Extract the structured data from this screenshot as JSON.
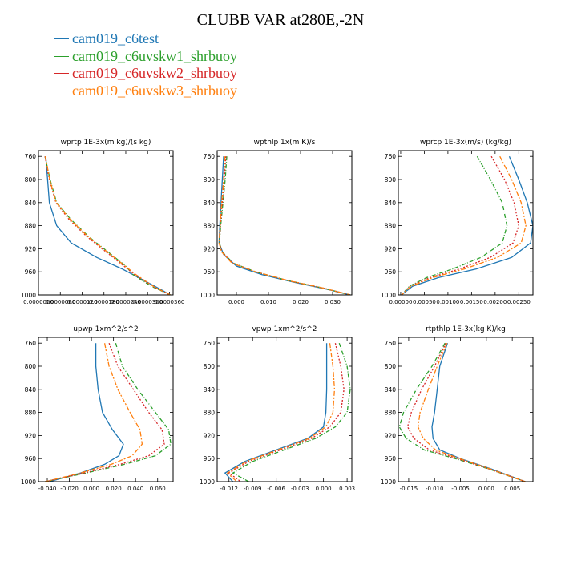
{
  "title": "CLUBB VAR at280E,-2N",
  "legend": [
    {
      "name": "cam019_c6test",
      "color": "#1f77b4"
    },
    {
      "name": "cam019_c6uvskw1_shrbuoy",
      "color": "#2ca02c"
    },
    {
      "name": "cam019_c6uvskw2_shrbuoy",
      "color": "#d62728"
    },
    {
      "name": "cam019_c6uvskw3_shrbuoy",
      "color": "#ff7f0e"
    }
  ],
  "chart_data": [
    {
      "type": "line",
      "title": "wprtp  1E-3x(m kg)/(s kg)",
      "xlim": [
        0.0,
        3.7e-05
      ],
      "ylim": [
        1000,
        750
      ],
      "xticks": [
        0.0,
        6e-06,
        1.2e-05,
        1.8e-05,
        2.4e-05,
        3e-05,
        3.6e-05
      ],
      "xtick_labels": [
        "0.0000000",
        "0.0000060",
        "0.0000120",
        "0.0000180",
        "0.0000240",
        "0.0000300",
        "0.0000360"
      ],
      "yticks": [
        760,
        800,
        840,
        880,
        920,
        960,
        1000
      ],
      "series": [
        {
          "name": "cam019_c6test",
          "x": [
            2e-06,
            2.5e-06,
            3e-06,
            5e-06,
            9e-06,
            1.6e-05,
            2.3e-05,
            2.9e-05,
            3.4e-05,
            3.62e-05
          ],
          "y": [
            760,
            800,
            840,
            880,
            910,
            935,
            955,
            975,
            992,
            1000
          ]
        },
        {
          "name": "cam019_c6uvskw1_shrbuoy",
          "x": [
            1.8e-06,
            3.2e-06,
            5e-06,
            9e-06,
            1.4e-05,
            2e-05,
            2.4e-05,
            2.6e-05,
            3.1e-05,
            3.62e-05
          ],
          "y": [
            760,
            800,
            840,
            870,
            900,
            930,
            950,
            965,
            985,
            1000
          ]
        },
        {
          "name": "cam019_c6uvskw2_shrbuoy",
          "x": [
            1.8e-06,
            3e-06,
            4.8e-06,
            8.5e-06,
            1.35e-05,
            1.95e-05,
            2.35e-05,
            2.65e-05,
            3.2e-05,
            3.62e-05
          ],
          "y": [
            760,
            800,
            840,
            870,
            900,
            930,
            950,
            965,
            987,
            1000
          ]
        },
        {
          "name": "cam019_c6uvskw3_shrbuoy",
          "x": [
            1.9e-06,
            3.1e-06,
            4.9e-06,
            8.8e-06,
            1.38e-05,
            1.98e-05,
            2.38e-05,
            2.68e-05,
            3.18e-05,
            3.62e-05
          ],
          "y": [
            760,
            800,
            840,
            870,
            900,
            930,
            950,
            965,
            986,
            1000
          ]
        }
      ]
    },
    {
      "type": "line",
      "title": "wpthlp  1x(m K)/s",
      "xlim": [
        -0.006,
        0.036
      ],
      "ylim": [
        1000,
        750
      ],
      "xticks": [
        0.0,
        0.01,
        0.02,
        0.03
      ],
      "xtick_labels": [
        "0.000",
        "0.010",
        "0.020",
        "0.030"
      ],
      "yticks": [
        760,
        800,
        840,
        880,
        920,
        960,
        1000
      ],
      "series": [
        {
          "name": "cam019_c6test",
          "x": [
            -0.004,
            -0.0044,
            -0.0048,
            -0.0052,
            -0.0054,
            -0.004,
            0.0,
            0.008,
            0.018,
            0.028,
            0.0355
          ],
          "y": [
            760,
            800,
            840,
            880,
            910,
            930,
            950,
            965,
            978,
            990,
            1000
          ]
        },
        {
          "name": "cam019_c6uvskw1_shrbuoy",
          "x": [
            -0.003,
            -0.0035,
            -0.0042,
            -0.0049,
            -0.0053,
            -0.0045,
            -0.001,
            0.006,
            0.016,
            0.027,
            0.0355
          ],
          "y": [
            760,
            800,
            840,
            880,
            910,
            925,
            945,
            960,
            975,
            988,
            1000
          ]
        },
        {
          "name": "cam019_c6uvskw2_shrbuoy",
          "x": [
            -0.0033,
            -0.0038,
            -0.0044,
            -0.005,
            -0.0053,
            -0.0046,
            -0.0012,
            0.006,
            0.016,
            0.027,
            0.0355
          ],
          "y": [
            760,
            800,
            840,
            880,
            910,
            925,
            945,
            960,
            975,
            988,
            1000
          ]
        },
        {
          "name": "cam019_c6uvskw3_shrbuoy",
          "x": [
            -0.0036,
            -0.004,
            -0.0046,
            -0.0051,
            -0.0054,
            -0.0047,
            -0.0014,
            0.006,
            0.016,
            0.027,
            0.0355
          ],
          "y": [
            760,
            800,
            840,
            880,
            910,
            925,
            945,
            960,
            975,
            988,
            1000
          ]
        }
      ]
    },
    {
      "type": "line",
      "title": "wprcp  1E-3x(m/s) (kg/kg)",
      "xlim": [
        -5e-05,
        0.0028
      ],
      "ylim": [
        1000,
        750
      ],
      "xticks": [
        0.0,
        0.0005,
        0.001,
        0.0015,
        0.002,
        0.0025
      ],
      "xtick_labels": [
        "0.00000",
        "0.00050",
        "0.00100",
        "0.00150",
        "0.00200",
        "0.00250"
      ],
      "yticks": [
        760,
        800,
        840,
        880,
        920,
        960,
        1000
      ],
      "series": [
        {
          "name": "cam019_c6test",
          "x": [
            0.0023,
            0.0025,
            0.00268,
            0.0028,
            0.00275,
            0.00235,
            0.0016,
            0.0008,
            0.00025,
            2e-05
          ],
          "y": [
            760,
            800,
            840,
            880,
            910,
            935,
            955,
            970,
            985,
            1000
          ]
        },
        {
          "name": "cam019_c6uvskw1_shrbuoy",
          "x": [
            0.00162,
            0.0019,
            0.00215,
            0.00225,
            0.00215,
            0.0017,
            0.0011,
            0.00055,
            0.00018,
            2e-05
          ],
          "y": [
            760,
            800,
            840,
            880,
            910,
            935,
            955,
            970,
            985,
            1000
          ]
        },
        {
          "name": "cam019_c6uvskw2_shrbuoy",
          "x": [
            0.00192,
            0.0022,
            0.0024,
            0.0025,
            0.00238,
            0.0019,
            0.00125,
            0.00062,
            0.0002,
            2e-05
          ],
          "y": [
            760,
            800,
            840,
            880,
            910,
            935,
            955,
            970,
            985,
            1000
          ]
        },
        {
          "name": "cam019_c6uvskw3_shrbuoy",
          "x": [
            0.0021,
            0.00235,
            0.00255,
            0.00265,
            0.00255,
            0.00205,
            0.00135,
            0.00068,
            0.00022,
            2e-05
          ],
          "y": [
            760,
            800,
            840,
            880,
            910,
            935,
            955,
            970,
            985,
            1000
          ]
        }
      ]
    },
    {
      "type": "line",
      "title": "upwp  1xm^2/s^2",
      "xlim": [
        -0.048,
        0.074
      ],
      "ylim": [
        1000,
        750
      ],
      "xticks": [
        -0.04,
        -0.02,
        0.0,
        0.02,
        0.04,
        0.06
      ],
      "xtick_labels": [
        "-0.040",
        "-0.020",
        "0.000",
        "0.020",
        "0.040",
        "0.060"
      ],
      "yticks": [
        760,
        800,
        840,
        880,
        920,
        960,
        1000
      ],
      "series": [
        {
          "name": "cam019_c6test",
          "x": [
            0.004,
            0.004,
            0.006,
            0.01,
            0.019,
            0.029,
            0.025,
            0.012,
            -0.01,
            -0.038
          ],
          "y": [
            760,
            800,
            840,
            880,
            910,
            935,
            955,
            970,
            985,
            1000
          ]
        },
        {
          "name": "cam019_c6uvskw1_shrbuoy",
          "x": [
            0.022,
            0.028,
            0.042,
            0.058,
            0.07,
            0.072,
            0.058,
            0.03,
            -0.005,
            -0.042
          ],
          "y": [
            760,
            800,
            840,
            880,
            910,
            935,
            955,
            970,
            985,
            1000
          ]
        },
        {
          "name": "cam019_c6uvskw2_shrbuoy",
          "x": [
            0.016,
            0.024,
            0.038,
            0.052,
            0.064,
            0.066,
            0.052,
            0.026,
            -0.007,
            -0.042
          ],
          "y": [
            760,
            800,
            840,
            880,
            910,
            935,
            955,
            970,
            985,
            1000
          ]
        },
        {
          "name": "cam019_c6uvskw3_shrbuoy",
          "x": [
            0.012,
            0.016,
            0.024,
            0.035,
            0.044,
            0.046,
            0.037,
            0.018,
            -0.01,
            -0.042
          ],
          "y": [
            760,
            800,
            840,
            880,
            910,
            935,
            955,
            970,
            985,
            1000
          ]
        }
      ]
    },
    {
      "type": "line",
      "title": "vpwp  1xm^2/s^2",
      "xlim": [
        -0.0135,
        0.0036
      ],
      "ylim": [
        1000,
        750
      ],
      "xticks": [
        -0.012,
        -0.009,
        -0.006,
        -0.003,
        0.0,
        0.003
      ],
      "xtick_labels": [
        "-0.012",
        "-0.009",
        "-0.006",
        "-0.003",
        "0.000",
        "0.003"
      ],
      "yticks": [
        760,
        800,
        840,
        880,
        920,
        960,
        1000
      ],
      "series": [
        {
          "name": "cam019_c6test",
          "x": [
            0.0004,
            0.0004,
            0.0004,
            0.0003,
            0.0,
            -0.002,
            -0.006,
            -0.01,
            -0.0125,
            -0.0115
          ],
          "y": [
            760,
            800,
            840,
            880,
            905,
            925,
            945,
            965,
            985,
            1000
          ]
        },
        {
          "name": "cam019_c6uvskw1_shrbuoy",
          "x": [
            0.002,
            0.003,
            0.0034,
            0.003,
            0.0015,
            -0.001,
            -0.005,
            -0.009,
            -0.0115,
            -0.0095
          ],
          "y": [
            760,
            800,
            840,
            880,
            905,
            925,
            945,
            965,
            985,
            1000
          ]
        },
        {
          "name": "cam019_c6uvskw2_shrbuoy",
          "x": [
            0.0015,
            0.0022,
            0.0026,
            0.0022,
            0.0008,
            -0.0015,
            -0.0055,
            -0.0095,
            -0.012,
            -0.0105
          ],
          "y": [
            760,
            800,
            840,
            880,
            905,
            925,
            945,
            965,
            985,
            1000
          ]
        },
        {
          "name": "cam019_c6uvskw3_shrbuoy",
          "x": [
            0.0008,
            0.0012,
            0.0014,
            0.0012,
            0.0003,
            -0.0018,
            -0.0058,
            -0.0098,
            -0.0122,
            -0.011
          ],
          "y": [
            760,
            800,
            840,
            880,
            905,
            925,
            945,
            965,
            985,
            1000
          ]
        }
      ]
    },
    {
      "type": "line",
      "title": "rtpthlp  1E-3x(kg K)/kg",
      "xlim": [
        -0.017,
        0.009
      ],
      "ylim": [
        1000,
        750
      ],
      "xticks": [
        -0.015,
        -0.01,
        -0.005,
        0.0,
        0.005
      ],
      "xtick_labels": [
        "-0.015",
        "-0.010",
        "-0.005",
        "0.000",
        "0.005"
      ],
      "yticks": [
        760,
        800,
        840,
        880,
        920,
        960,
        1000
      ],
      "series": [
        {
          "name": "cam019_c6test",
          "x": [
            -0.0075,
            -0.009,
            -0.0095,
            -0.01,
            -0.0105,
            -0.0103,
            -0.009,
            -0.005,
            0.001,
            0.0075
          ],
          "y": [
            760,
            800,
            840,
            880,
            905,
            925,
            945,
            960,
            978,
            1000
          ]
        },
        {
          "name": "cam019_c6uvskw1_shrbuoy",
          "x": [
            -0.008,
            -0.0105,
            -0.0135,
            -0.016,
            -0.0168,
            -0.0155,
            -0.012,
            -0.006,
            0.0005,
            0.0075
          ],
          "y": [
            760,
            800,
            840,
            880,
            905,
            925,
            945,
            960,
            978,
            1000
          ]
        },
        {
          "name": "cam019_c6uvskw2_shrbuoy",
          "x": [
            -0.0078,
            -0.01,
            -0.0125,
            -0.0145,
            -0.0152,
            -0.014,
            -0.011,
            -0.0056,
            0.0006,
            0.0075
          ],
          "y": [
            760,
            800,
            840,
            880,
            905,
            925,
            945,
            960,
            978,
            1000
          ]
        },
        {
          "name": "cam019_c6uvskw3_shrbuoy",
          "x": [
            -0.0076,
            -0.0095,
            -0.0112,
            -0.0128,
            -0.0132,
            -0.0122,
            -0.0098,
            -0.0052,
            0.0008,
            0.0075
          ],
          "y": [
            760,
            800,
            840,
            880,
            905,
            925,
            945,
            960,
            978,
            1000
          ]
        }
      ]
    }
  ]
}
